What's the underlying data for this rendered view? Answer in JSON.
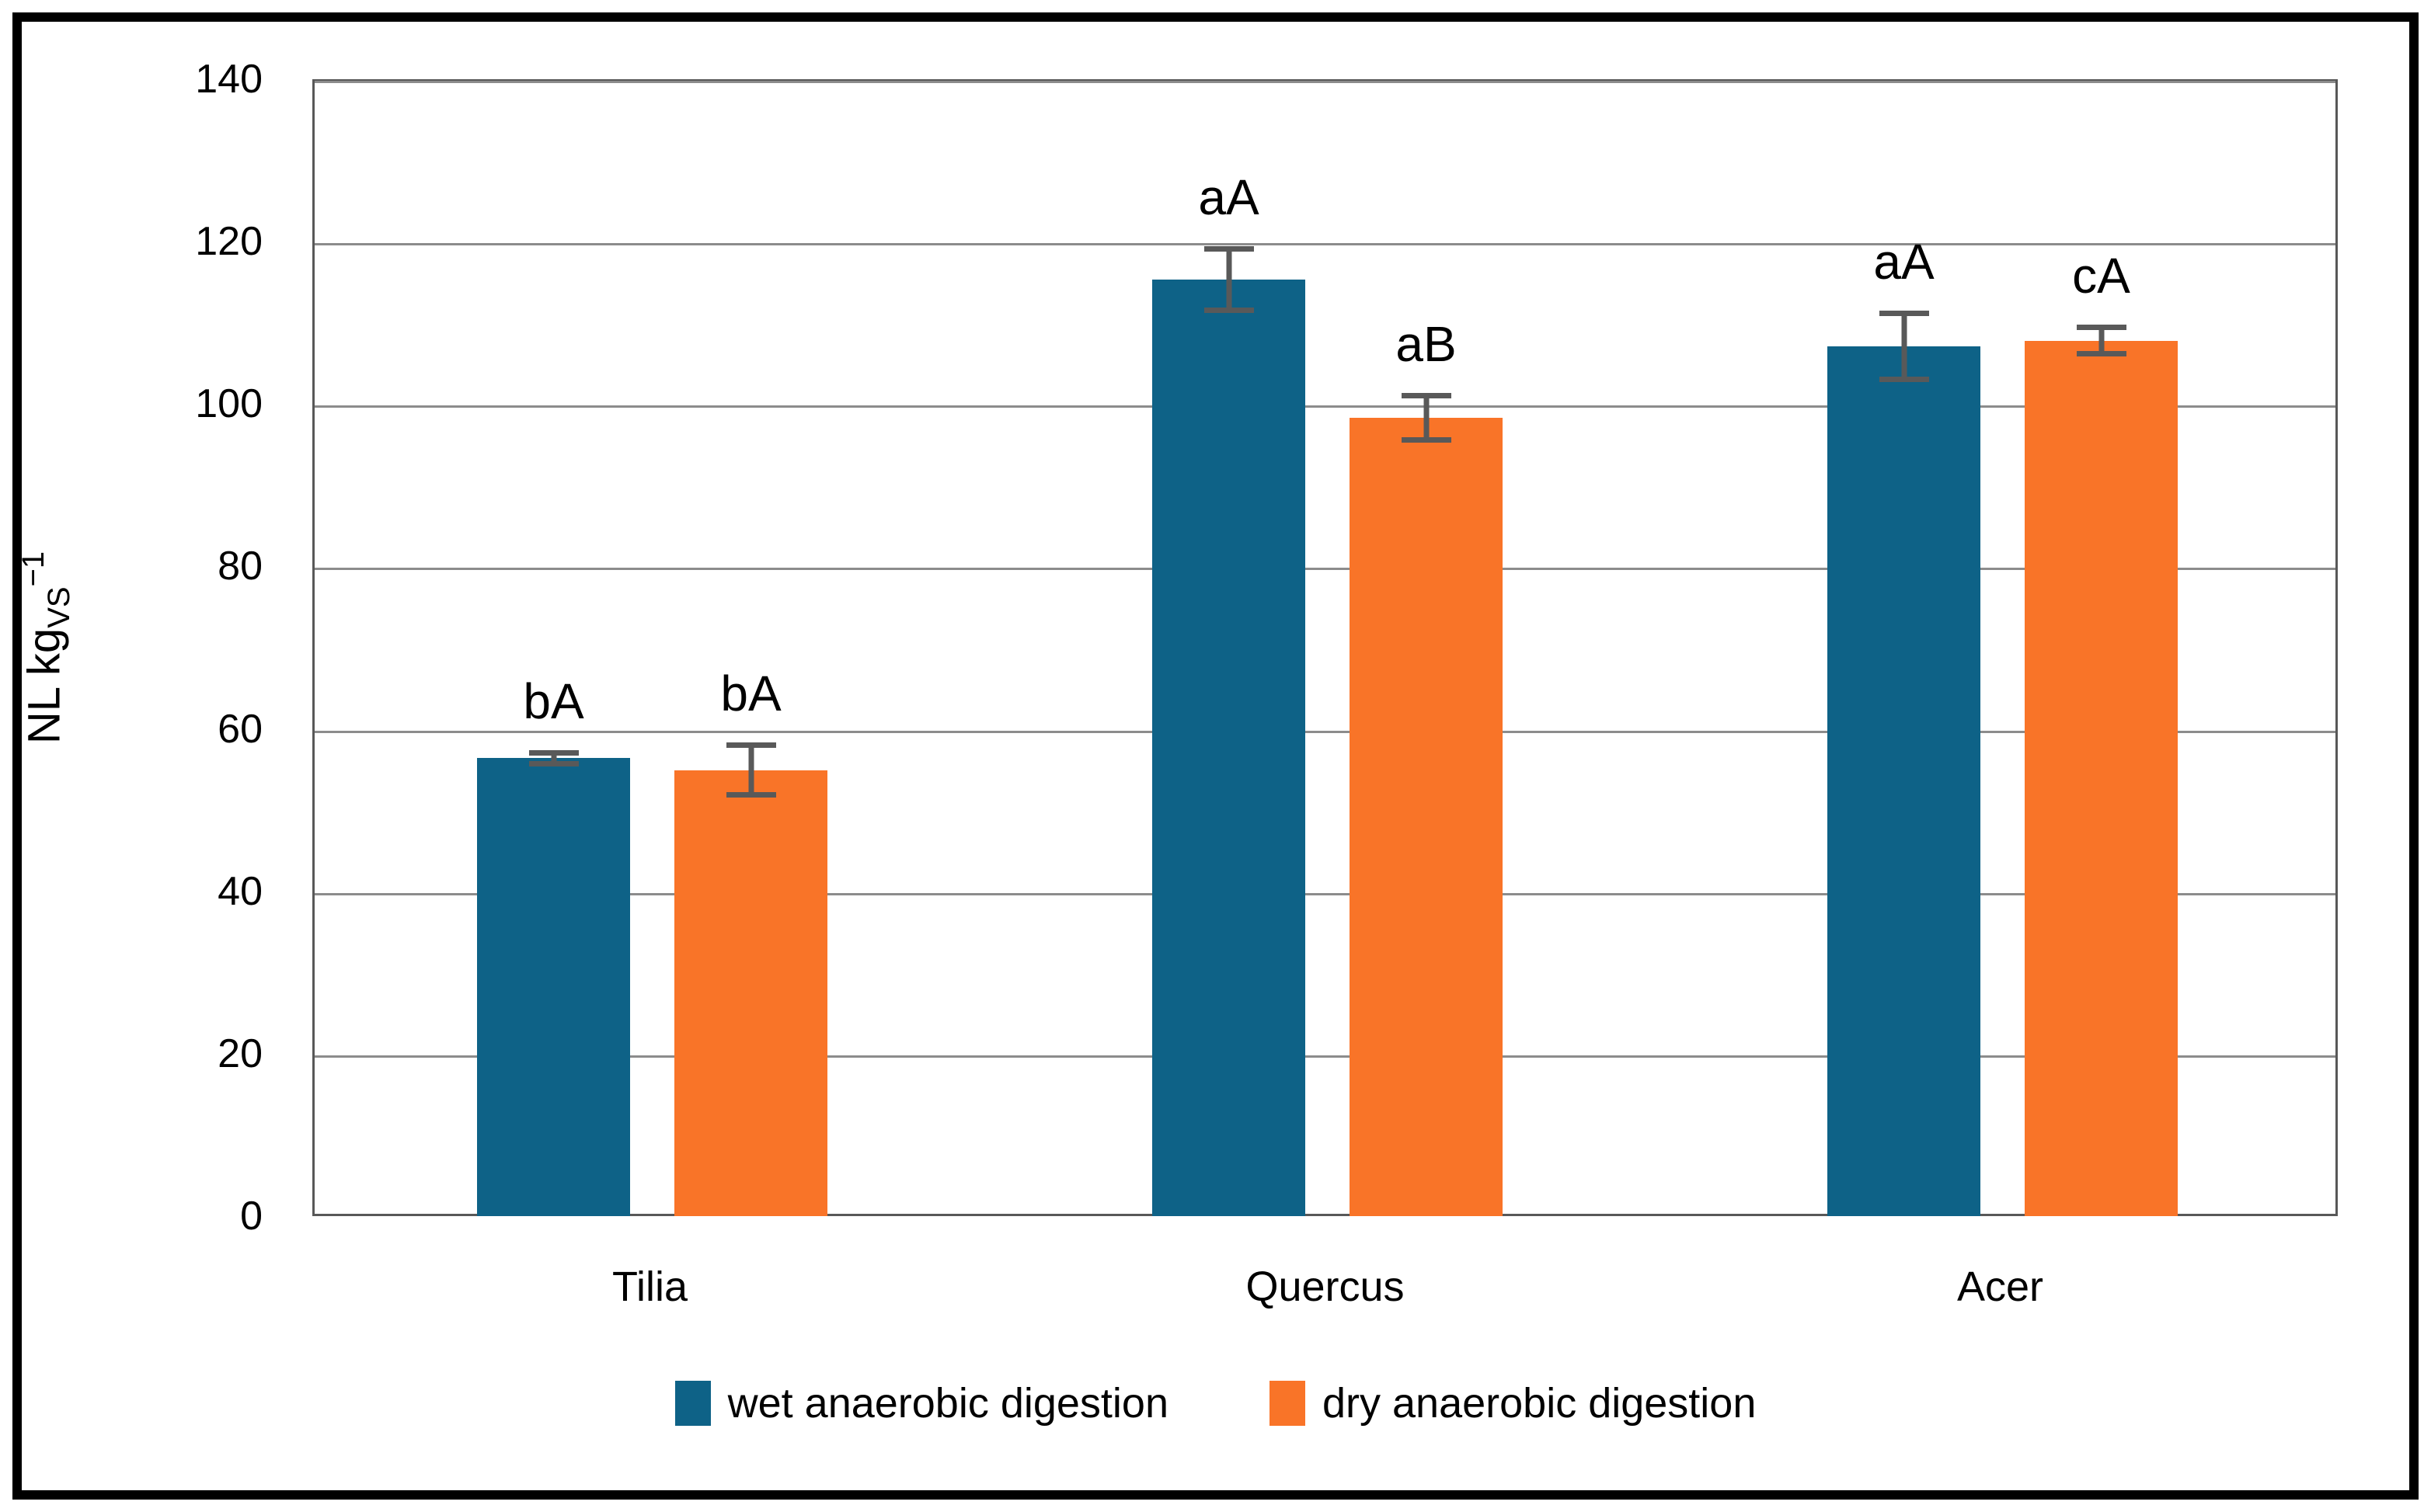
{
  "chart_data": {
    "type": "bar",
    "title": "",
    "ylabel_main": "NL kg",
    "ylabel_sub": "VS",
    "ylabel_sup": "−1",
    "categories": [
      "Tilia",
      "Quercus",
      "Acer"
    ],
    "series": [
      {
        "name": "wet anaerobic digestion",
        "color": "#0E6287",
        "values": [
          56.7,
          115.6,
          107.4
        ],
        "errors": [
          1.0,
          4.1,
          4.4
        ],
        "point_labels": [
          "bA",
          "aA",
          "aA"
        ]
      },
      {
        "name": "dry anaerobic digestion",
        "color": "#F97428",
        "values": [
          55.2,
          98.6,
          108.1
        ],
        "errors": [
          3.4,
          3.1,
          2.0
        ],
        "point_labels": [
          "bA",
          "aB",
          "cA"
        ]
      }
    ],
    "ylim": [
      0,
      140
    ],
    "ytick_step": 20,
    "yticks": [
      "0",
      "20",
      "40",
      "60",
      "80",
      "100",
      "120",
      "140"
    ],
    "grid": true,
    "legend_position": "bottom",
    "error_bar_color": "#595959",
    "gridline_color": "#8c8c8c"
  }
}
